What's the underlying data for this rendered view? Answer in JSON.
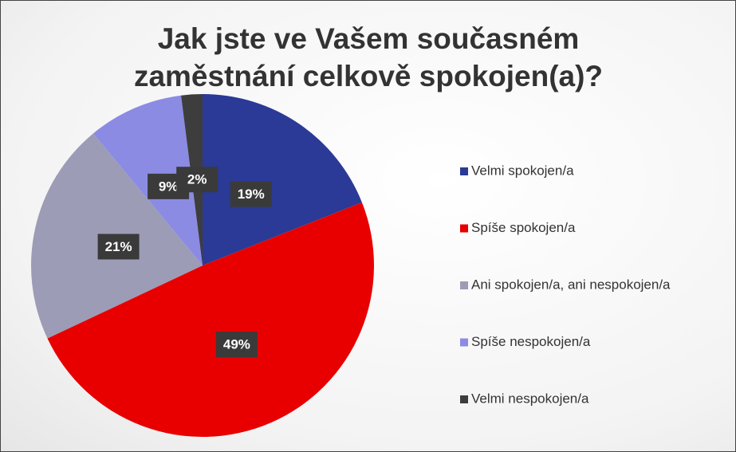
{
  "chart_data": {
    "type": "pie",
    "title": "Jak jste ve Vašem současném zaměstnání celkově spokojen(a)?",
    "categories": [
      "Velmi spokojen/a",
      "Spíše spokojen/a",
      "Ani spokojen/a, ani nespokojen/a",
      "Spíše nespokojen/a",
      "Velmi nespokojen/a"
    ],
    "values": [
      19,
      49,
      21,
      9,
      2
    ],
    "value_labels": [
      "19%",
      "49%",
      "21%",
      "9%",
      "2%"
    ],
    "colors": [
      "#2a3a96",
      "#e80000",
      "#9c9cb6",
      "#8b8be4",
      "#3d3d3d"
    ],
    "legend": "right"
  }
}
